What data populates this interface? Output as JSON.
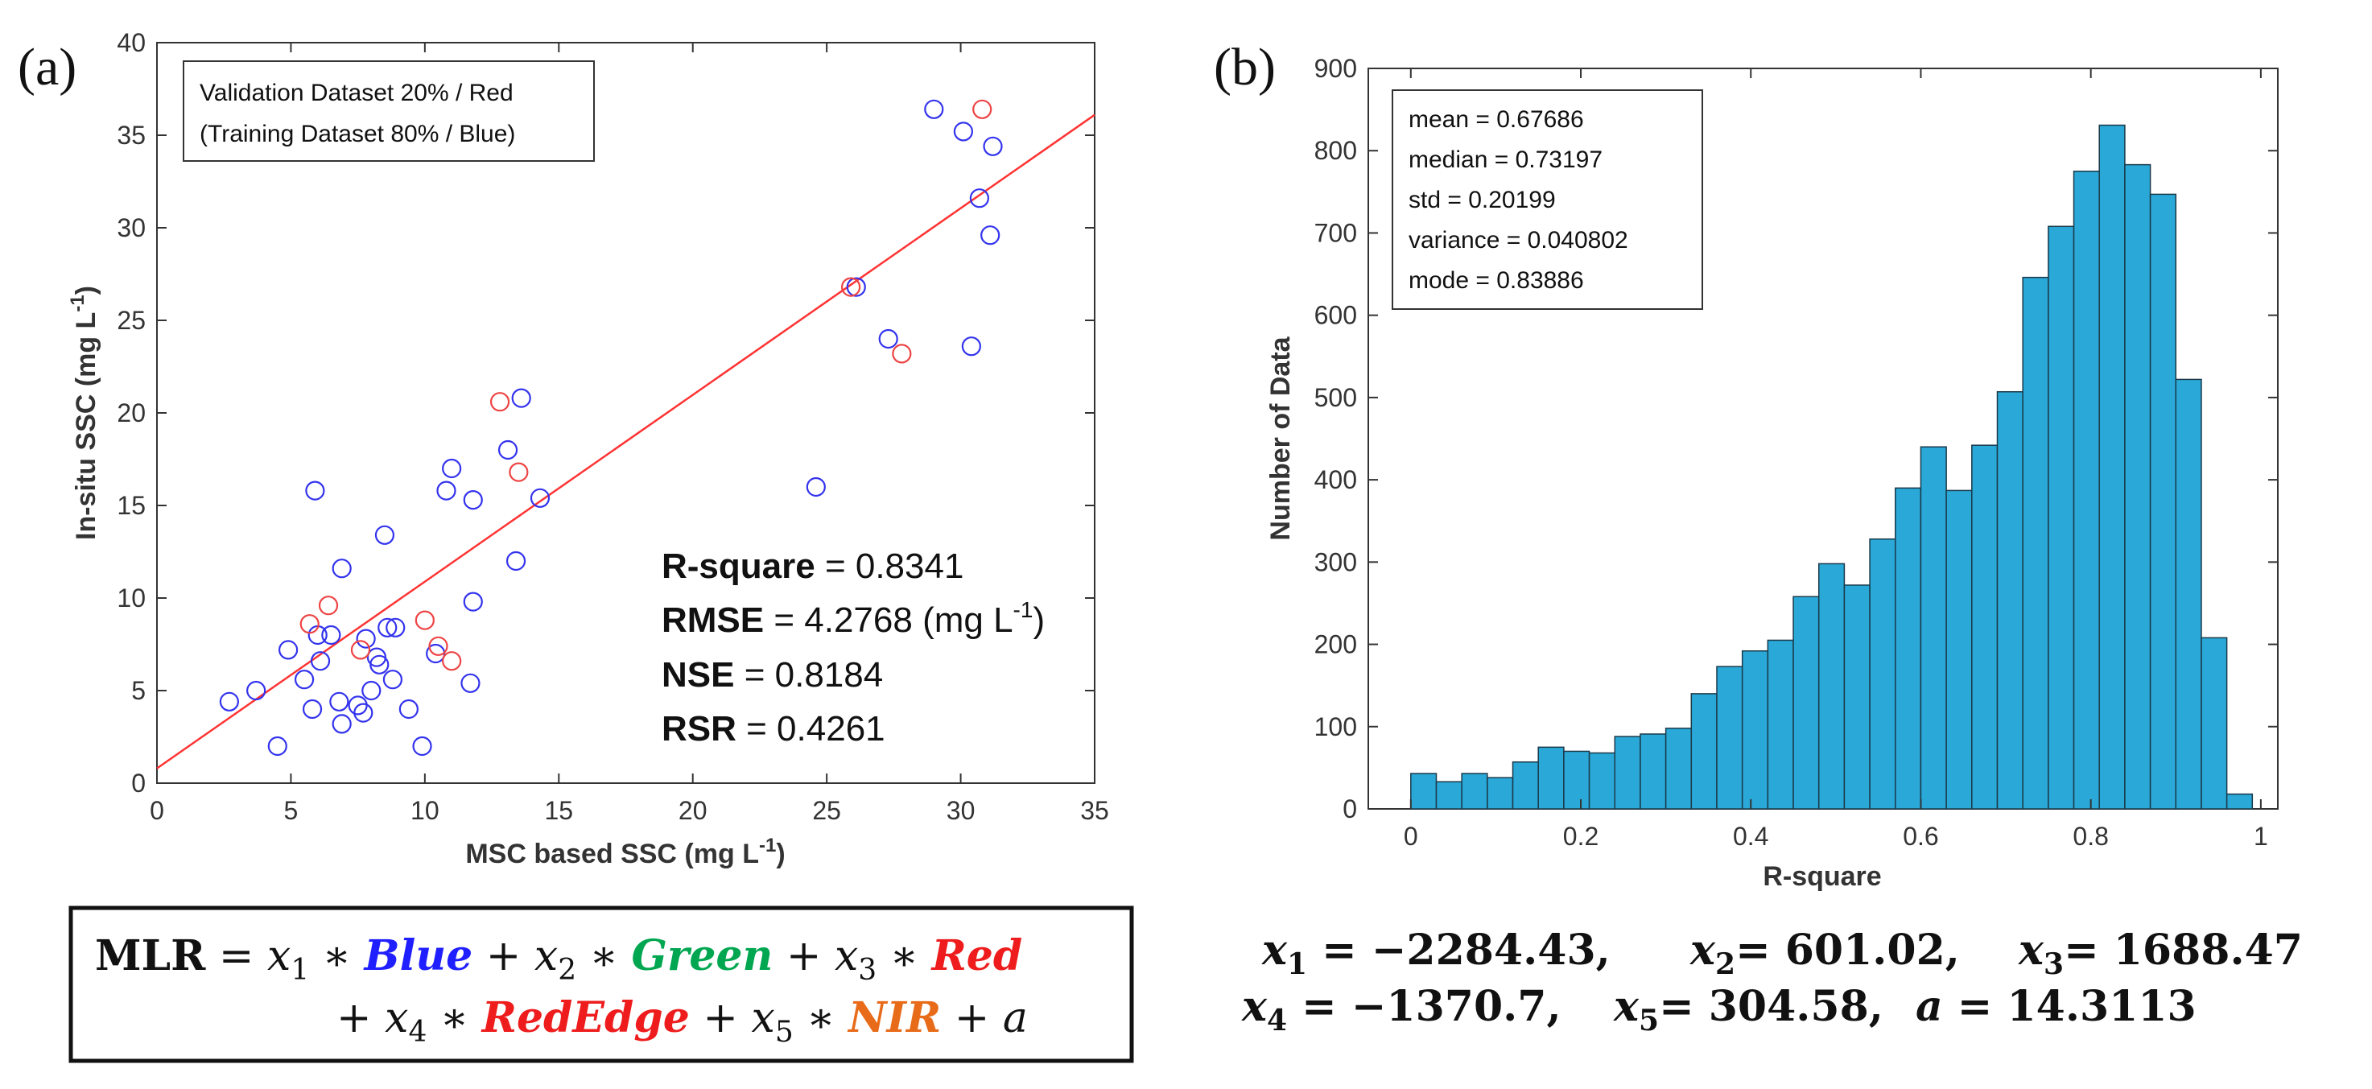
{
  "panel_a": {
    "label": "(a)",
    "legend_line1": "Validation Dataset  20% / Red",
    "legend_line2": "(Training Dataset 80% / Blue)",
    "stats": [
      {
        "name": "R-square",
        "value": " = 0.8341",
        "unit": "",
        "sup": "",
        "tail": ""
      },
      {
        "name": "RMSE",
        "value": " = 4.2768 (mg L",
        "sup": "-1",
        "tail": ")"
      },
      {
        "name": "NSE",
        "value": " = 0.8184",
        "sup": "",
        "tail": ""
      },
      {
        "name": "RSR",
        "value": " = 0.4261",
        "sup": "",
        "tail": ""
      }
    ],
    "xlabel_main": "MSC based SSC (mg L",
    "xlabel_sup": "-1",
    "xlabel_tail": ")",
    "ylabel_main": "In-situ SSC (mg L",
    "ylabel_sup": "-1",
    "ylabel_tail": ")"
  },
  "panel_b": {
    "label": "(b)",
    "stats_lines": [
      "mean = 0.67686",
      "median = 0.73197",
      "std = 0.20199",
      "variance = 0.040802",
      "mode = 0.83886"
    ],
    "xlabel": "R-square",
    "ylabel": "Number of Data"
  },
  "equation": {
    "prefix": "MLR",
    "eq": " = ",
    "x1": "x",
    "s1": "1",
    "x2": "x",
    "s2": "2",
    "x3": "x",
    "s3": "3",
    "x4": "x",
    "s4": "4",
    "x5": "x",
    "s5": "5",
    "op_mul": " ∗ ",
    "op_plus": " + ",
    "blue": "Blue",
    "green": "Green",
    "red": "Red",
    "rededge": "RedEdge",
    "nir": "NIR",
    "a": "a"
  },
  "coefficients": {
    "line1": [
      {
        "var": "x",
        "sub": "1",
        "text": " = −2284.43,"
      },
      {
        "var": "x",
        "sub": "2",
        "text": "=    601.02,"
      },
      {
        "var": "x",
        "sub": "3",
        "text": "=    1688.47"
      }
    ],
    "line2": [
      {
        "var": "x",
        "sub": "4",
        "text": " = −1370.7,"
      },
      {
        "var": "x",
        "sub": "5",
        "text": "=    304.58,"
      },
      {
        "var": "a",
        "sub": "",
        "text": "  =    14.3113"
      }
    ]
  },
  "colors": {
    "training": "#3333ee",
    "validation": "#ee4444",
    "fit_line": "#ff3333",
    "bar_fill": "#2aa8d8",
    "bar_edge": "#1a3a4a",
    "blue_word": "#1f1fff",
    "green_word": "#00a650",
    "red_word": "#ee1c1c",
    "nir_word": "#e86b1a"
  },
  "chart_data": [
    {
      "type": "scatter",
      "title": "",
      "xlabel": "MSC based SSC (mg L-1)",
      "ylabel": "In-situ SSC (mg L-1)",
      "xlim": [
        0,
        35
      ],
      "ylim": [
        0,
        40
      ],
      "xticks": [
        0,
        5,
        10,
        15,
        20,
        25,
        30,
        35
      ],
      "yticks": [
        0,
        5,
        10,
        15,
        20,
        25,
        30,
        35,
        40
      ],
      "fit_line": {
        "x": [
          0,
          35
        ],
        "y": [
          0.8,
          36.1
        ]
      },
      "series": [
        {
          "name": "Training Dataset 80% / Blue",
          "points": [
            [
              2.7,
              4.4
            ],
            [
              3.7,
              5.0
            ],
            [
              4.5,
              2.0
            ],
            [
              4.9,
              7.2
            ],
            [
              5.5,
              5.6
            ],
            [
              5.8,
              4.0
            ],
            [
              5.9,
              15.8
            ],
            [
              6.0,
              8.0
            ],
            [
              6.1,
              6.6
            ],
            [
              6.5,
              8.0
            ],
            [
              6.8,
              4.4
            ],
            [
              6.9,
              3.2
            ],
            [
              6.9,
              11.6
            ],
            [
              7.5,
              4.2
            ],
            [
              7.7,
              3.8
            ],
            [
              7.8,
              7.8
            ],
            [
              8.0,
              5.0
            ],
            [
              8.2,
              6.8
            ],
            [
              8.3,
              6.4
            ],
            [
              8.5,
              13.4
            ],
            [
              8.6,
              8.4
            ],
            [
              8.9,
              8.4
            ],
            [
              8.8,
              5.6
            ],
            [
              9.4,
              4.0
            ],
            [
              9.9,
              2.0
            ],
            [
              10.4,
              7.0
            ],
            [
              10.8,
              15.8
            ],
            [
              11.0,
              17.0
            ],
            [
              11.7,
              5.4
            ],
            [
              11.8,
              9.8
            ],
            [
              11.8,
              15.3
            ],
            [
              13.1,
              18.0
            ],
            [
              13.4,
              12.0
            ],
            [
              13.6,
              20.8
            ],
            [
              14.3,
              15.4
            ],
            [
              24.6,
              16.0
            ],
            [
              26.1,
              26.8
            ],
            [
              27.3,
              24.0
            ],
            [
              29.0,
              36.4
            ],
            [
              30.1,
              35.2
            ],
            [
              30.4,
              23.6
            ],
            [
              30.7,
              31.6
            ],
            [
              31.1,
              29.6
            ],
            [
              31.2,
              34.4
            ]
          ]
        },
        {
          "name": "Validation Dataset 20% / Red",
          "points": [
            [
              5.7,
              8.6
            ],
            [
              6.4,
              9.6
            ],
            [
              7.6,
              7.2
            ],
            [
              10.0,
              8.8
            ],
            [
              10.5,
              7.4
            ],
            [
              11.0,
              6.6
            ],
            [
              12.8,
              20.6
            ],
            [
              13.5,
              16.8
            ],
            [
              25.9,
              26.8
            ],
            [
              27.8,
              23.2
            ],
            [
              30.8,
              36.4
            ]
          ]
        }
      ]
    },
    {
      "type": "bar",
      "title": "",
      "xlabel": "R-square",
      "ylabel": "Number of Data",
      "xlim": [
        -0.05,
        1.02
      ],
      "ylim": [
        0,
        900
      ],
      "xticks": [
        0,
        0.2,
        0.4,
        0.6,
        0.8,
        1
      ],
      "yticks": [
        0,
        100,
        200,
        300,
        400,
        500,
        600,
        700,
        800,
        900
      ],
      "bin_start": 0,
      "bin_width": 0.03,
      "values": [
        43,
        33,
        43,
        38,
        57,
        75,
        70,
        68,
        88,
        91,
        98,
        140,
        173,
        192,
        205,
        258,
        298,
        272,
        328,
        390,
        440,
        387,
        442,
        507,
        646,
        708,
        775,
        831,
        783,
        747,
        522,
        208,
        18
      ]
    }
  ]
}
